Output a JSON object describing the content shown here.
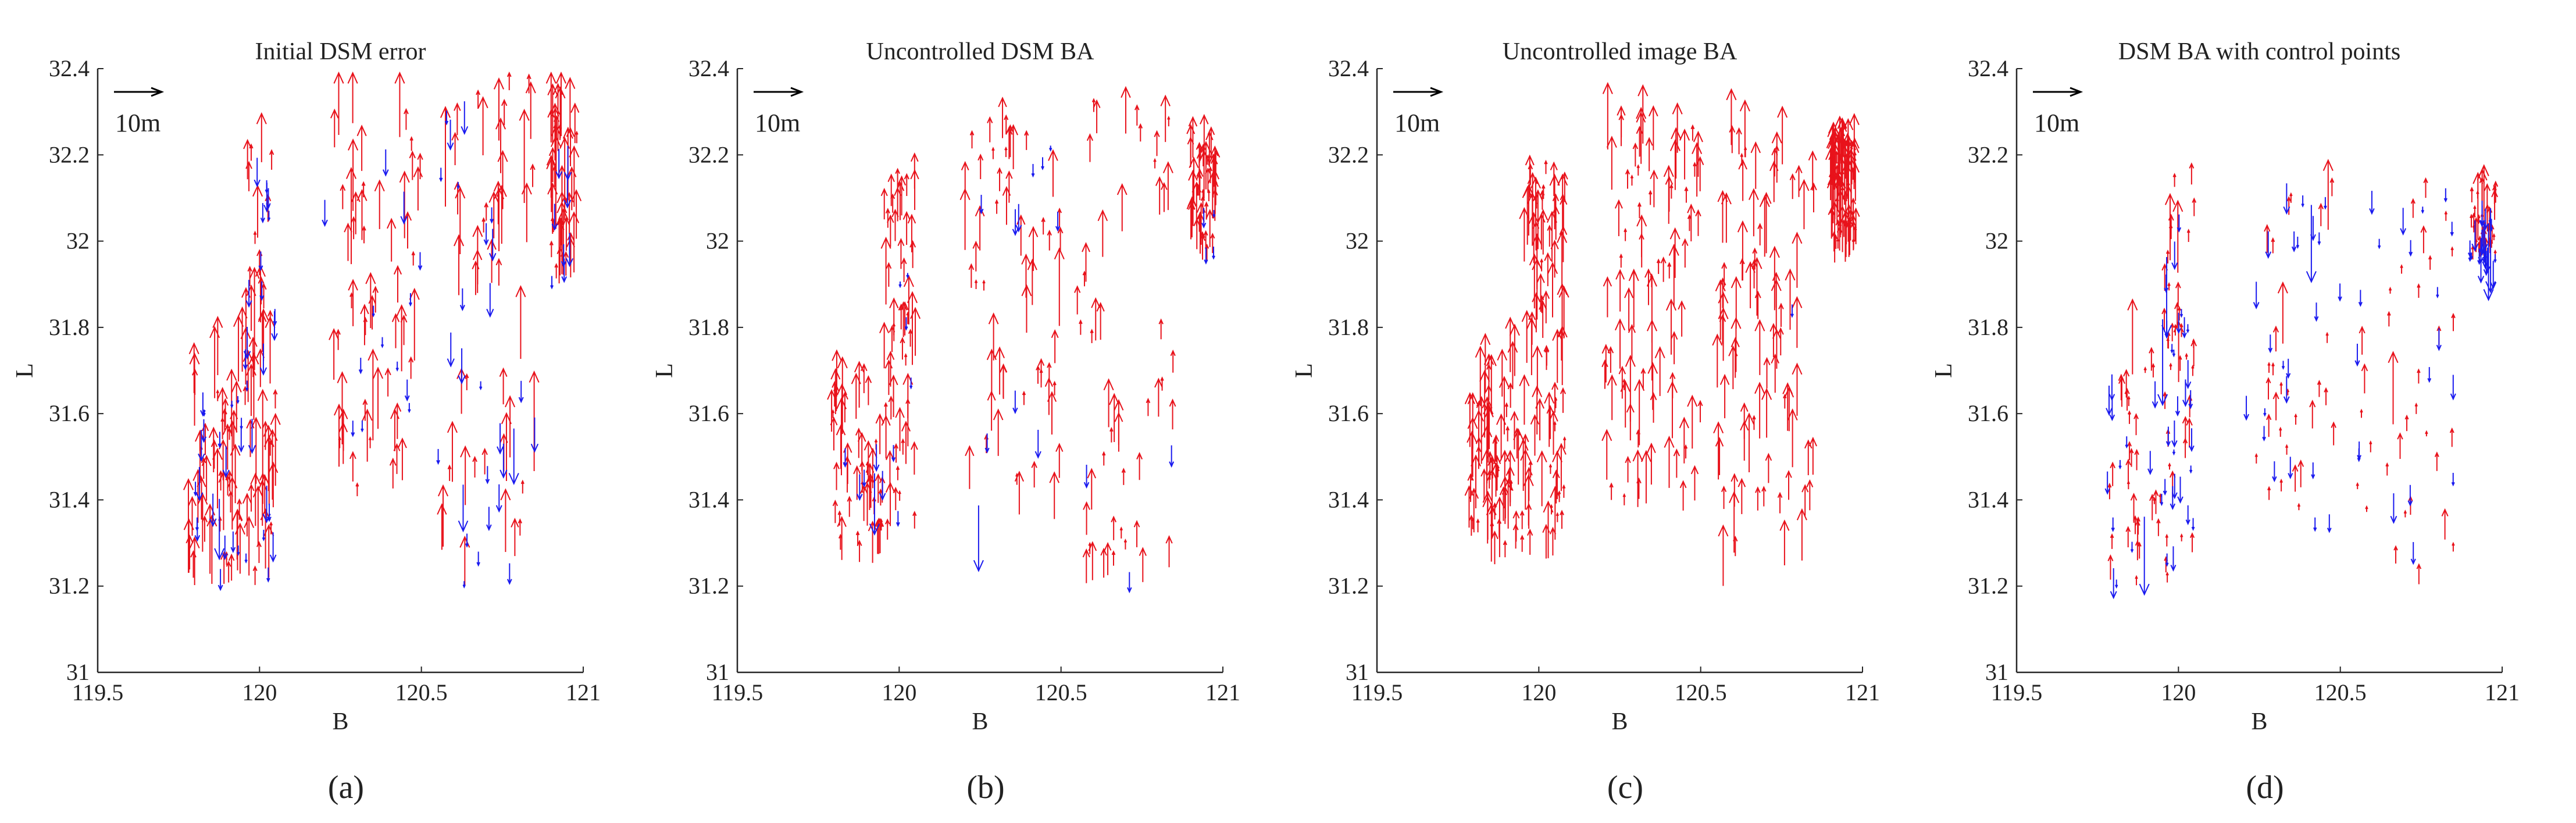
{
  "figure": {
    "captions": [
      "(a)",
      "(b)",
      "(c)",
      "(d)"
    ]
  },
  "colors": {
    "upward": "#e8121b",
    "downward": "#1a1aef",
    "axis": "#262626",
    "scale_arrow": "#000000"
  },
  "chart_data": [
    {
      "type": "scatter",
      "subtype": "quiver",
      "title": "Initial DSM error",
      "xlabel": "B",
      "ylabel": "L",
      "xlim": [
        119.5,
        121
      ],
      "ylim": [
        31,
        32.4
      ],
      "xticks": [
        "119.5",
        "120",
        "120.5",
        "121"
      ],
      "yticks": [
        "31",
        "31.2",
        "31.4",
        "31.6",
        "31.8",
        "32",
        "32.2",
        "32.4"
      ],
      "scale_label": "10m",
      "series": [
        {
          "name": "upward error",
          "color": "#e8121b",
          "typical_length": 0.12,
          "max_length": 0.25,
          "count": 260
        },
        {
          "name": "downward error",
          "color": "#1a1aef",
          "typical_length": 0.06,
          "max_length": 0.14,
          "count": 90
        }
      ],
      "clusters": [
        {
          "x": [
            119.78,
            119.95
          ],
          "y": [
            31.2,
            31.7
          ]
        },
        {
          "x": [
            119.95,
            120.05
          ],
          "y": [
            31.2,
            32.2
          ]
        },
        {
          "x": [
            120.2,
            120.5
          ],
          "y": [
            31.4,
            32.3
          ]
        },
        {
          "x": [
            120.55,
            120.85
          ],
          "y": [
            31.2,
            32.35
          ]
        },
        {
          "x": [
            120.9,
            120.98
          ],
          "y": [
            31.9,
            32.25
          ]
        }
      ]
    },
    {
      "type": "scatter",
      "subtype": "quiver",
      "title": "Uncontrolled DSM BA",
      "xlabel": "B",
      "ylabel": "L",
      "xlim": [
        119.5,
        121
      ],
      "ylim": [
        31,
        32.4
      ],
      "xticks": [
        "119.5",
        "120",
        "120.5",
        "121"
      ],
      "yticks": [
        "31",
        "31.2",
        "31.4",
        "31.6",
        "31.8",
        "32",
        "32.2",
        "32.4"
      ],
      "scale_label": "10m",
      "series": [
        {
          "name": "upward error",
          "color": "#e8121b",
          "typical_length": 0.08,
          "max_length": 0.18,
          "count": 260
        },
        {
          "name": "downward error",
          "color": "#1a1aef",
          "typical_length": 0.05,
          "max_length": 0.17,
          "count": 30
        }
      ],
      "clusters": [
        {
          "x": [
            119.78,
            119.95
          ],
          "y": [
            31.25,
            31.65
          ]
        },
        {
          "x": [
            119.95,
            120.05
          ],
          "y": [
            31.3,
            32.15
          ]
        },
        {
          "x": [
            120.2,
            120.5
          ],
          "y": [
            31.35,
            32.25
          ]
        },
        {
          "x": [
            120.55,
            120.85
          ],
          "y": [
            31.2,
            32.3
          ]
        },
        {
          "x": [
            120.9,
            120.98
          ],
          "y": [
            31.95,
            32.2
          ]
        }
      ]
    },
    {
      "type": "scatter",
      "subtype": "quiver",
      "title": "Uncontrolled image BA",
      "xlabel": "B",
      "ylabel": "L",
      "xlim": [
        119.5,
        121
      ],
      "ylim": [
        31,
        32.4
      ],
      "xticks": [
        "119.5",
        "120",
        "120.5",
        "121"
      ],
      "yticks": [
        "31",
        "31.2",
        "31.4",
        "31.6",
        "31.8",
        "32",
        "32.2",
        "32.4"
      ],
      "scale_label": "10m",
      "series": [
        {
          "name": "upward error",
          "color": "#e8121b",
          "typical_length": 0.1,
          "max_length": 0.16,
          "count": 420
        },
        {
          "name": "downward error",
          "color": "#1a1aef",
          "typical_length": 0.1,
          "max_length": 0.14,
          "count": 1
        }
      ],
      "clusters": [
        {
          "x": [
            119.78,
            119.95
          ],
          "y": [
            31.25,
            31.7
          ]
        },
        {
          "x": [
            119.95,
            120.08
          ],
          "y": [
            31.25,
            32.2
          ]
        },
        {
          "x": [
            120.2,
            120.5
          ],
          "y": [
            31.35,
            32.25
          ]
        },
        {
          "x": [
            120.55,
            120.85
          ],
          "y": [
            31.2,
            32.25
          ]
        },
        {
          "x": [
            120.9,
            120.98
          ],
          "y": [
            31.95,
            32.2
          ]
        }
      ]
    },
    {
      "type": "scatter",
      "subtype": "quiver",
      "title": "DSM BA with control points",
      "xlabel": "B",
      "ylabel": "L",
      "xlim": [
        119.5,
        121
      ],
      "ylim": [
        31,
        32.4
      ],
      "xticks": [
        "119.5",
        "120",
        "120.5",
        "121"
      ],
      "yticks": [
        "31",
        "31.2",
        "31.4",
        "31.6",
        "31.8",
        "32",
        "32.2",
        "32.4"
      ],
      "scale_label": "10m",
      "series": [
        {
          "name": "upward error",
          "color": "#e8121b",
          "typical_length": 0.05,
          "max_length": 0.18,
          "count": 170
        },
        {
          "name": "downward error",
          "color": "#1a1aef",
          "typical_length": 0.05,
          "max_length": 0.2,
          "count": 110
        }
      ],
      "clusters": [
        {
          "x": [
            119.78,
            119.95
          ],
          "y": [
            31.2,
            31.7
          ]
        },
        {
          "x": [
            119.95,
            120.05
          ],
          "y": [
            31.2,
            32.15
          ]
        },
        {
          "x": [
            120.2,
            120.5
          ],
          "y": [
            31.35,
            32.2
          ]
        },
        {
          "x": [
            120.55,
            120.85
          ],
          "y": [
            31.2,
            32.2
          ]
        },
        {
          "x": [
            120.9,
            120.98
          ],
          "y": [
            31.95,
            32.1
          ]
        }
      ]
    }
  ]
}
